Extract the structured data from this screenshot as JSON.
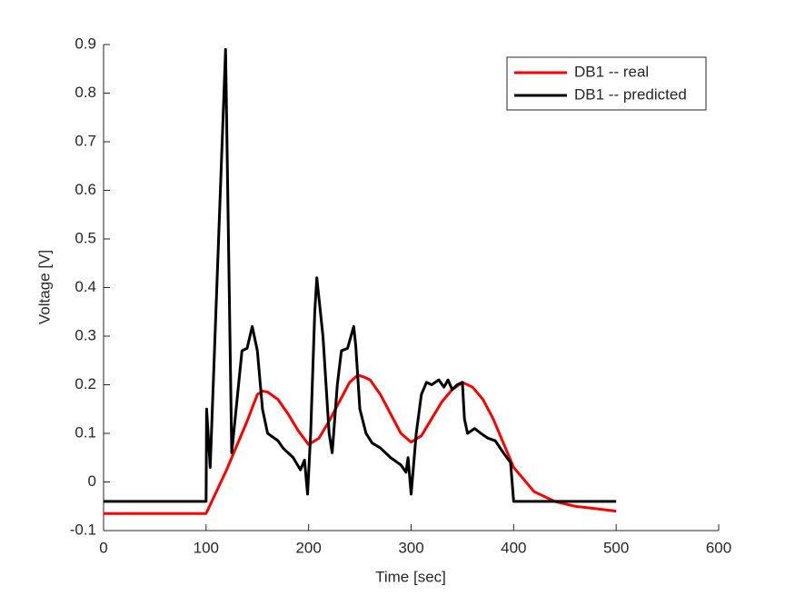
{
  "chart_data": {
    "type": "line",
    "xlabel": "Time [sec]",
    "ylabel": "Voltage [V]",
    "xlim": [
      0,
      600
    ],
    "xticks": [
      0,
      100,
      200,
      300,
      400,
      500,
      600
    ],
    "ylim": [
      -0.1,
      0.9
    ],
    "yticks": [
      -0.1,
      0,
      0.1,
      0.2,
      0.3,
      0.4,
      0.5,
      0.6,
      0.7,
      0.8,
      0.9
    ],
    "legend": "northeast",
    "series": [
      {
        "name": "DB1 -- real",
        "color": "#ff0000",
        "x": [
          0,
          100,
          110,
          120,
          130,
          140,
          150,
          155,
          160,
          170,
          180,
          190,
          200,
          210,
          220,
          230,
          240,
          248,
          255,
          260,
          270,
          280,
          290,
          300,
          310,
          320,
          330,
          340,
          350,
          360,
          370,
          380,
          390,
          400,
          420,
          440,
          460,
          480,
          500
        ],
        "values": [
          -0.065,
          -0.065,
          -0.02,
          0.025,
          0.075,
          0.125,
          0.18,
          0.187,
          0.185,
          0.17,
          0.14,
          0.105,
          0.077,
          0.09,
          0.125,
          0.165,
          0.205,
          0.22,
          0.215,
          0.21,
          0.18,
          0.14,
          0.1,
          0.082,
          0.095,
          0.13,
          0.165,
          0.19,
          0.205,
          0.195,
          0.17,
          0.13,
          0.08,
          0.03,
          -0.02,
          -0.04,
          -0.05,
          -0.055,
          -0.06
        ]
      },
      {
        "name": "DB1 -- predicted",
        "color": "#000000",
        "x": [
          0,
          100,
          100.5,
          104,
          119,
          125,
          135,
          140,
          145,
          150,
          155,
          160,
          170,
          175,
          185,
          192,
          196,
          199,
          202,
          206,
          208,
          214,
          220,
          223,
          228,
          232,
          238,
          244,
          246,
          250,
          256,
          262,
          270,
          280,
          290,
          295,
          297,
          300,
          305,
          310,
          315,
          320,
          327,
          332,
          336,
          340,
          345,
          350,
          352,
          355,
          362,
          368,
          375,
          382,
          390,
          397,
          400,
          500
        ],
        "values": [
          -0.04,
          -0.04,
          0.15,
          0.03,
          0.89,
          0.06,
          0.27,
          0.275,
          0.32,
          0.27,
          0.15,
          0.1,
          0.085,
          0.07,
          0.05,
          0.025,
          0.045,
          -0.025,
          0.1,
          0.35,
          0.42,
          0.3,
          0.1,
          0.06,
          0.2,
          0.27,
          0.275,
          0.32,
          0.28,
          0.15,
          0.1,
          0.08,
          0.07,
          0.05,
          0.035,
          0.02,
          0.05,
          -0.025,
          0.1,
          0.18,
          0.205,
          0.2,
          0.21,
          0.195,
          0.21,
          0.19,
          0.2,
          0.205,
          0.13,
          0.1,
          0.11,
          0.1,
          0.09,
          0.085,
          0.06,
          0.04,
          -0.04,
          -0.04
        ]
      }
    ]
  }
}
